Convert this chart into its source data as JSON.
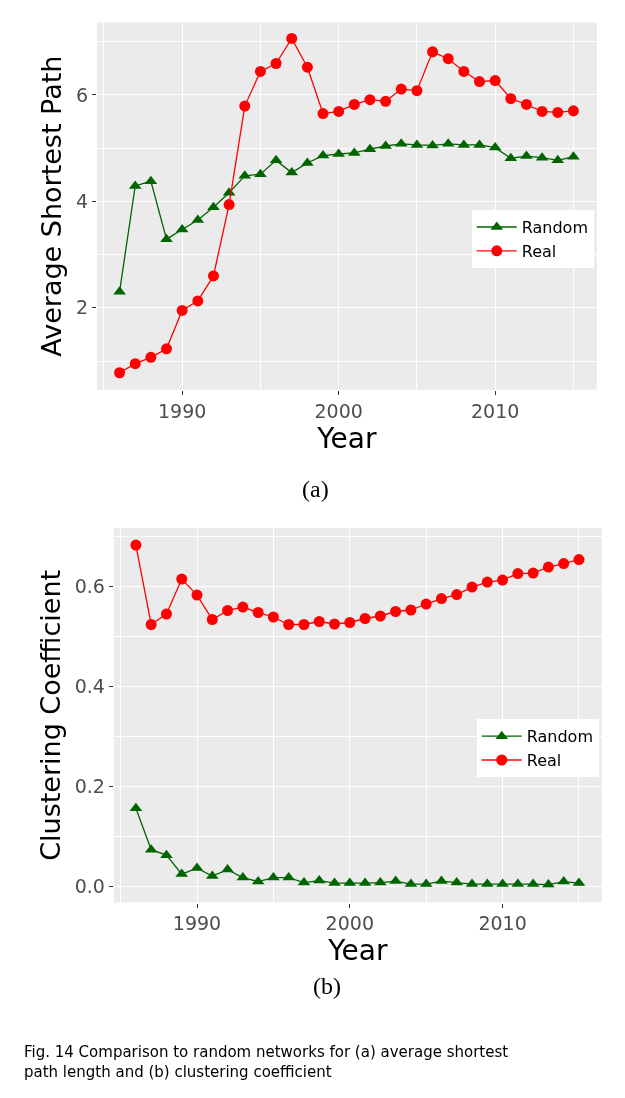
{
  "chart_data": [
    {
      "type": "line",
      "xlabel": "Year",
      "ylabel": "Average Shortest Path",
      "annotations": [
        "(a)"
      ],
      "x": [
        1986,
        1987,
        1988,
        1989,
        1990,
        1991,
        1992,
        1993,
        1994,
        1995,
        1996,
        1997,
        1998,
        1999,
        2000,
        2001,
        2002,
        2003,
        2004,
        2005,
        2006,
        2007,
        2008,
        2009,
        2010,
        2011,
        2012,
        2013,
        2014,
        2015
      ],
      "series": [
        {
          "name": "Random",
          "color": "#006400",
          "marker": "triangle",
          "values": [
            2.3,
            4.29,
            4.38,
            3.29,
            3.47,
            3.65,
            3.89,
            4.16,
            4.48,
            4.51,
            4.77,
            4.54,
            4.72,
            4.86,
            4.89,
            4.91,
            4.98,
            5.04,
            5.08,
            5.06,
            5.05,
            5.08,
            5.06,
            5.06,
            5.01,
            4.81,
            4.85,
            4.82,
            4.77,
            4.84
          ]
        },
        {
          "name": "Real",
          "color": "#ff0000",
          "marker": "circle",
          "values": [
            0.78,
            0.95,
            1.07,
            1.23,
            1.95,
            2.13,
            2.6,
            3.94,
            5.79,
            6.44,
            6.59,
            7.06,
            6.52,
            5.65,
            5.69,
            5.82,
            5.91,
            5.88,
            6.11,
            6.08,
            6.81,
            6.68,
            6.44,
            6.25,
            6.27,
            5.93,
            5.82,
            5.69,
            5.67,
            5.7
          ]
        }
      ],
      "xlim": [
        1984.55,
        2016.5
      ],
      "xticks": [
        1990,
        2000,
        2010
      ],
      "ylim": [
        0.46,
        7.36
      ],
      "yticks": [
        2,
        4,
        6
      ],
      "grid": true,
      "legend": "right",
      "line_style": "solid"
    },
    {
      "type": "line",
      "xlabel": "Year",
      "ylabel": "Clustering Coefficient",
      "annotations": [
        "(b)",
        "Fig. 14 Comparison to random networks for (a) average shortest path length and (b) clustering coefficient"
      ],
      "x": [
        1986,
        1987,
        1988,
        1989,
        1990,
        1991,
        1992,
        1993,
        1994,
        1995,
        1996,
        1997,
        1998,
        1999,
        2000,
        2001,
        2002,
        2003,
        2004,
        2005,
        2006,
        2007,
        2008,
        2009,
        2010,
        2011,
        2012,
        2013,
        2014,
        2015
      ],
      "series": [
        {
          "name": "Random",
          "color": "#006400",
          "marker": "triangle",
          "values": [
            0.156,
            0.073,
            0.062,
            0.024,
            0.036,
            0.02,
            0.033,
            0.017,
            0.009,
            0.017,
            0.017,
            0.007,
            0.011,
            0.006,
            0.006,
            0.006,
            0.007,
            0.01,
            0.004,
            0.004,
            0.01,
            0.007,
            0.004,
            0.004,
            0.004,
            0.004,
            0.004,
            0.003,
            0.009,
            0.006
          ]
        },
        {
          "name": "Real",
          "color": "#ff0000",
          "marker": "circle",
          "values": [
            0.683,
            0.524,
            0.545,
            0.615,
            0.583,
            0.534,
            0.552,
            0.559,
            0.548,
            0.539,
            0.524,
            0.524,
            0.53,
            0.525,
            0.528,
            0.536,
            0.541,
            0.55,
            0.553,
            0.565,
            0.576,
            0.584,
            0.599,
            0.609,
            0.613,
            0.626,
            0.627,
            0.639,
            0.646,
            0.654
          ]
        }
      ],
      "xlim": [
        1984.55,
        2016.5
      ],
      "xticks": [
        1990,
        2000,
        2010
      ],
      "ylim": [
        -0.033,
        0.717
      ],
      "yticks": [
        {
          "value": 0.0,
          "label": "0.0"
        },
        {
          "value": 0.2,
          "label": "0.2"
        },
        {
          "value": 0.4,
          "label": "0.4"
        },
        {
          "value": 0.6,
          "label": "0.6"
        }
      ],
      "grid": true,
      "legend": "right",
      "line_style": "solid"
    }
  ]
}
